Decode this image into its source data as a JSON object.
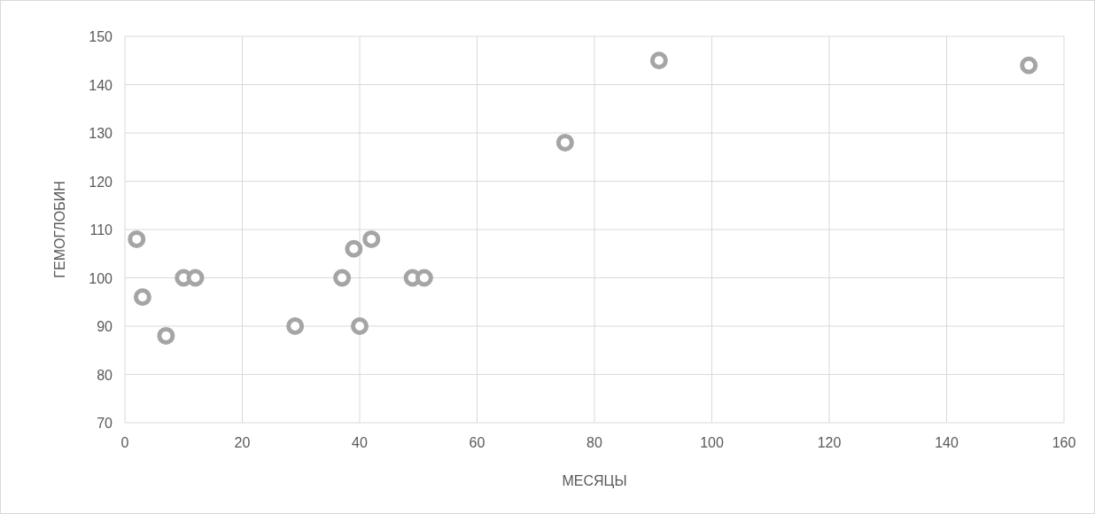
{
  "chart_data": {
    "type": "scatter",
    "xlabel": "МЕСЯЦЫ",
    "ylabel": "ГЕМОГЛОБИН",
    "x": [
      2,
      3,
      7,
      10,
      12,
      29,
      37,
      39,
      40,
      42,
      49,
      51,
      75,
      91,
      154
    ],
    "series": [
      {
        "color": "#a5a5a5",
        "values": [
          108,
          96,
          88,
          100,
          100,
          90,
          100,
          106,
          90,
          108,
          100,
          100,
          128,
          145,
          144
        ]
      }
    ],
    "xlim": [
      0,
      160
    ],
    "xticks": [
      0,
      20,
      40,
      60,
      80,
      100,
      120,
      140,
      160
    ],
    "ylim": [
      70,
      150
    ],
    "yticks": [
      70,
      80,
      90,
      100,
      110,
      120,
      130,
      140,
      150
    ],
    "grid": true,
    "marker": "circle"
  }
}
